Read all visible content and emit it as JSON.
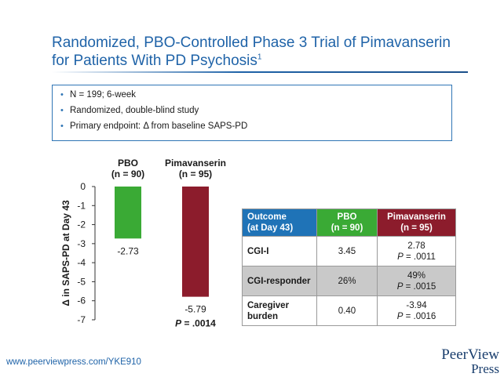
{
  "slide": {
    "title_line1": "Randomized, PBO-Controlled Phase 3 Trial of Pimavanserin",
    "title_line2": "for Patients With PD Psychosis",
    "title_superscript": "1",
    "bullets": [
      "N = 199; 6-week",
      "Randomized, double-blind study",
      "Primary endpoint: Δ from baseline SAPS-PD"
    ],
    "footer_url": "www.peerviewpress.com/YKE910",
    "logo_line1": "PeerView",
    "logo_line2": "Press"
  },
  "chart_data": {
    "type": "bar",
    "categories": [
      "PBO\n(n = 90)",
      "Pimavanserin\n(n = 95)"
    ],
    "category_names": [
      "PBO",
      "Pimavanserin"
    ],
    "category_ns": [
      "(n = 90)",
      "(n = 95)"
    ],
    "values": [
      -2.73,
      -5.79
    ],
    "value_labels": [
      "-2.73",
      "-5.79"
    ],
    "colors": [
      "#3aaa35",
      "#8c1c2c"
    ],
    "ylabel": "Δ in SAPS-PD at Day 43",
    "ylim": [
      -7,
      0
    ],
    "yticks": [
      0,
      -1,
      -2,
      -3,
      -4,
      -5,
      -6,
      -7
    ],
    "annotation": "P = .0014",
    "annotation_prefix": "P",
    "annotation_value": " = .0014",
    "grid": false
  },
  "outcome_table": {
    "headers": {
      "outcome_line1": "Outcome",
      "outcome_line2": "(at Day 43)",
      "pbo_line1": "PBO",
      "pbo_line2": "(n = 90)",
      "pim_line1": "Pimavanserin",
      "pim_line2": "(n = 95)"
    },
    "rows": [
      {
        "outcome_line1": "CGI-I",
        "outcome_line2": "",
        "pbo": "3.45",
        "pim": "2.78",
        "p_prefix": "P",
        "p_value": " = .0011"
      },
      {
        "outcome_line1": "CGI-responder",
        "outcome_line2": "",
        "pbo": "26%",
        "pim": "49%",
        "p_prefix": "P",
        "p_value": " = .0015"
      },
      {
        "outcome_line1": "Caregiver",
        "outcome_line2": "burden",
        "pbo": "0.40",
        "pim": "-3.94",
        "p_prefix": "P",
        "p_value": " = .0016"
      }
    ]
  }
}
